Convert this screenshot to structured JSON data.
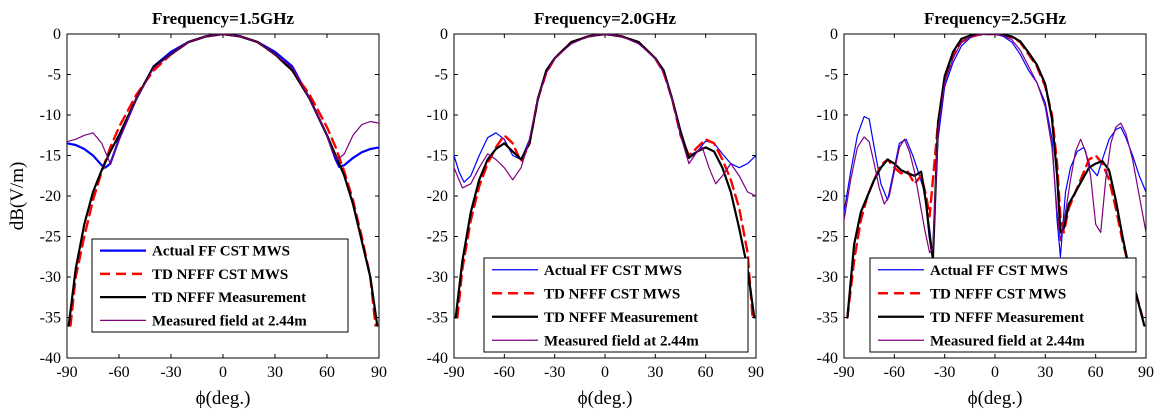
{
  "colors": {
    "actual": "#0000ff",
    "td_cst": "#ff0000",
    "td_meas": "#000000",
    "measured": "#800080"
  },
  "chart_data": [
    {
      "type": "line",
      "title": "Frequency=1.5GHz",
      "xlabel": "ϕ(deg.)",
      "ylabel": "dB(V/m)",
      "xlim": [
        -90,
        90
      ],
      "ylim": [
        -40,
        0
      ],
      "xticks": [
        "-90",
        "-60",
        "-30",
        "0",
        "30",
        "60",
        "90"
      ],
      "yticks": [
        "0",
        "-5",
        "-10",
        "-15",
        "-20",
        "-25",
        "-30",
        "-35",
        "-40"
      ],
      "legend": "bottom-center",
      "series": [
        {
          "name": "Actual FF CST MWS",
          "color": "#0000ff",
          "dash": "none",
          "width": 2.2,
          "x": [
            -90,
            -85,
            -80,
            -75,
            -70,
            -68,
            -65,
            -60,
            -50,
            -40,
            -30,
            -20,
            -10,
            0,
            10,
            20,
            30,
            40,
            50,
            60,
            65,
            67,
            70,
            75,
            80,
            85,
            90
          ],
          "y": [
            -13.5,
            -13.7,
            -14.2,
            -15,
            -16.2,
            -16.5,
            -16,
            -13,
            -8,
            -4,
            -2.2,
            -1,
            -0.3,
            0,
            -0.3,
            -1,
            -2.2,
            -4,
            -8,
            -12.5,
            -15.5,
            -16.4,
            -16.2,
            -15.3,
            -14.6,
            -14.2,
            -14
          ]
        },
        {
          "name": "TD NFFF CST MWS",
          "color": "#ff0000",
          "dash": "10,6",
          "width": 2.4,
          "x": [
            -88,
            -85,
            -80,
            -75,
            -70,
            -65,
            -60,
            -50,
            -40,
            -30,
            -20,
            -10,
            0,
            10,
            20,
            30,
            40,
            50,
            60,
            65,
            70,
            75,
            80,
            85,
            88
          ],
          "y": [
            -36,
            -30,
            -25,
            -20.5,
            -17,
            -14,
            -11.5,
            -7.5,
            -4.5,
            -2.5,
            -1,
            -0.3,
            0,
            -0.3,
            -1,
            -2.5,
            -4.5,
            -7.5,
            -11.5,
            -14,
            -17,
            -20.5,
            -25,
            -30,
            -36
          ]
        },
        {
          "name": "TD NFFF Measurement",
          "color": "#000000",
          "dash": "none",
          "width": 2.2,
          "x": [
            -89,
            -85,
            -80,
            -75,
            -70,
            -65,
            -60,
            -50,
            -40,
            -30,
            -20,
            -10,
            0,
            10,
            20,
            30,
            40,
            50,
            60,
            65,
            70,
            75,
            80,
            85,
            89
          ],
          "y": [
            -36,
            -29,
            -23.5,
            -19.5,
            -16.8,
            -14.5,
            -12.5,
            -8,
            -4,
            -2.5,
            -1,
            -0.3,
            0,
            -0.3,
            -1,
            -2.5,
            -4.5,
            -8,
            -12.5,
            -15,
            -17.5,
            -21,
            -25.5,
            -30,
            -36
          ]
        },
        {
          "name": "Measured field at 2.44m",
          "color": "#800080",
          "dash": "none",
          "width": 1.2,
          "x": [
            -90,
            -85,
            -80,
            -75,
            -70,
            -65,
            -60,
            -50,
            -40,
            -30,
            -20,
            -10,
            0,
            10,
            20,
            30,
            40,
            50,
            60,
            63,
            66,
            70,
            75,
            80,
            85,
            90
          ],
          "y": [
            -13.3,
            -13,
            -12.5,
            -12.2,
            -13.5,
            -16,
            -13,
            -8,
            -4.2,
            -2.5,
            -1,
            -0.3,
            0,
            -0.3,
            -1,
            -2.5,
            -4.2,
            -8,
            -12.5,
            -14.5,
            -15.5,
            -14.8,
            -12.5,
            -11.2,
            -10.8,
            -11
          ]
        }
      ]
    },
    {
      "type": "line",
      "title": "Frequency=2.0GHz",
      "xlabel": "ϕ(deg.)",
      "ylabel": "",
      "xlim": [
        -90,
        90
      ],
      "ylim": [
        -40,
        0
      ],
      "xticks": [
        "-90",
        "-60",
        "-30",
        "0",
        "30",
        "60",
        "90"
      ],
      "yticks": [
        "0",
        "-5",
        "-10",
        "-15",
        "-20",
        "-25",
        "-30",
        "-35",
        "-40"
      ],
      "legend": "bottom-center",
      "series": [
        {
          "name": "Actual FF CST MWS",
          "color": "#0000ff",
          "dash": "none",
          "width": 1.2,
          "x": [
            -90,
            -87,
            -84,
            -80,
            -75,
            -70,
            -65,
            -60,
            -55,
            -50,
            -45,
            -40,
            -35,
            -30,
            -20,
            -10,
            0,
            10,
            20,
            30,
            35,
            40,
            45,
            50,
            55,
            60,
            65,
            70,
            75,
            80,
            85,
            90
          ],
          "y": [
            -15,
            -17,
            -18.3,
            -17.5,
            -15,
            -12.8,
            -12.2,
            -13,
            -15,
            -15.5,
            -13,
            -8,
            -4.8,
            -3,
            -1.2,
            -0.3,
            0,
            -0.3,
            -1.2,
            -3,
            -4.8,
            -8,
            -12.5,
            -15,
            -14.5,
            -13.2,
            -13.5,
            -14.8,
            -16,
            -16.5,
            -16,
            -15
          ]
        },
        {
          "name": "TD NFFF CST MWS",
          "color": "#ff0000",
          "dash": "10,6",
          "width": 2.4,
          "x": [
            -88,
            -85,
            -80,
            -75,
            -70,
            -65,
            -60,
            -55,
            -50,
            -45,
            -40,
            -35,
            -30,
            -20,
            -10,
            0,
            10,
            20,
            30,
            35,
            40,
            45,
            50,
            55,
            60,
            65,
            70,
            75,
            80,
            85,
            88
          ],
          "y": [
            -35,
            -29,
            -23,
            -18.8,
            -16,
            -14,
            -12.5,
            -13.5,
            -15.8,
            -13.5,
            -8,
            -4.8,
            -3,
            -1,
            -0.3,
            0,
            -0.3,
            -1,
            -3,
            -4.8,
            -8,
            -12.5,
            -15,
            -14,
            -13,
            -13.5,
            -15.5,
            -18,
            -21.5,
            -27,
            -35
          ]
        },
        {
          "name": "TD NFFF Measurement",
          "color": "#000000",
          "dash": "none",
          "width": 2.2,
          "x": [
            -89,
            -85,
            -80,
            -75,
            -70,
            -65,
            -60,
            -55,
            -50,
            -45,
            -40,
            -35,
            -30,
            -20,
            -10,
            0,
            10,
            20,
            30,
            35,
            40,
            45,
            50,
            55,
            60,
            65,
            70,
            75,
            80,
            85,
            89
          ],
          "y": [
            -35,
            -28,
            -22,
            -18,
            -15.5,
            -14.2,
            -13.5,
            -14.5,
            -15.5,
            -13.5,
            -8,
            -4.5,
            -3,
            -1,
            -0.3,
            0,
            -0.3,
            -1,
            -3,
            -4.5,
            -8,
            -12,
            -15.3,
            -14.5,
            -14,
            -14.5,
            -16.5,
            -19.5,
            -24,
            -29,
            -35
          ]
        },
        {
          "name": "Measured field at 2.44m",
          "color": "#800080",
          "dash": "none",
          "width": 1.2,
          "x": [
            -90,
            -85,
            -80,
            -75,
            -70,
            -65,
            -60,
            -55,
            -50,
            -45,
            -40,
            -35,
            -30,
            -20,
            -10,
            0,
            10,
            20,
            30,
            35,
            40,
            45,
            50,
            55,
            58,
            62,
            66,
            70,
            75,
            80,
            85,
            90
          ],
          "y": [
            -16.5,
            -19,
            -18.5,
            -16.5,
            -14.8,
            -15.5,
            -16.5,
            -18,
            -16.5,
            -13,
            -8,
            -4.8,
            -3,
            -1.2,
            -0.3,
            0,
            -0.3,
            -1.2,
            -3,
            -4.8,
            -8,
            -12.5,
            -16,
            -14.5,
            -14,
            -16.5,
            -18.5,
            -17.5,
            -16,
            -17.5,
            -19.5,
            -20
          ]
        }
      ]
    },
    {
      "type": "line",
      "title": "Frequency=2.5GHz",
      "xlabel": "ϕ(deg.)",
      "ylabel": "",
      "xlim": [
        -90,
        90
      ],
      "ylim": [
        -40,
        0
      ],
      "xticks": [
        "-90",
        "-60",
        "-30",
        "0",
        "30",
        "60",
        "90"
      ],
      "yticks": [
        "0",
        "-5",
        "-10",
        "-15",
        "-20",
        "-25",
        "-30",
        "-35",
        "-40"
      ],
      "legend": "bottom-center",
      "series": [
        {
          "name": "Actual FF CST MWS",
          "color": "#0000ff",
          "dash": "none",
          "width": 1.2,
          "x": [
            -90,
            -86,
            -82,
            -78,
            -75,
            -72,
            -68,
            -64,
            -61,
            -57,
            -53,
            -49,
            -45,
            -42,
            -39,
            -37,
            -34,
            -30,
            -25,
            -20,
            -15,
            -10,
            -5,
            0,
            5,
            10,
            15,
            20,
            25,
            30,
            34,
            37,
            39,
            42,
            45,
            49,
            53,
            57,
            61,
            64,
            68,
            72,
            75,
            78,
            82,
            86,
            90
          ],
          "y": [
            -22,
            -17,
            -12.5,
            -10.2,
            -10.5,
            -14,
            -18.5,
            -20.5,
            -17.5,
            -13.5,
            -13,
            -15,
            -17.5,
            -19.5,
            -24,
            -27.5,
            -13,
            -6.5,
            -3.5,
            -1.5,
            -0.5,
            -0.1,
            0,
            0,
            -0.3,
            -1,
            -2.5,
            -4.5,
            -6,
            -8.5,
            -13,
            -23,
            -27.5,
            -19.5,
            -16.5,
            -14.5,
            -14,
            -16.5,
            -17.5,
            -15.5,
            -13,
            -11.8,
            -11.5,
            -12.8,
            -15,
            -17.5,
            -19.5
          ]
        },
        {
          "name": "TD NFFF CST MWS",
          "color": "#ff0000",
          "dash": "10,6",
          "width": 2.4,
          "x": [
            -88,
            -84,
            -80,
            -76,
            -72,
            -68,
            -64,
            -60,
            -56,
            -52,
            -48,
            -44,
            -41,
            -39,
            -37,
            -34,
            -30,
            -25,
            -20,
            -15,
            -10,
            -5,
            0,
            5,
            10,
            15,
            20,
            25,
            30,
            34,
            37,
            39,
            41,
            44,
            48,
            52,
            56,
            60,
            64,
            68,
            72,
            76,
            80,
            84,
            88
          ],
          "y": [
            -35,
            -28,
            -23,
            -20,
            -18,
            -16.2,
            -15.5,
            -16.5,
            -17.2,
            -17,
            -18.5,
            -17.5,
            -20,
            -22.5,
            -18,
            -11,
            -5.5,
            -2.5,
            -1,
            -0.4,
            -0.1,
            0,
            0,
            -0.1,
            -0.4,
            -1,
            -2.5,
            -4,
            -6.5,
            -10,
            -16,
            -22.5,
            -24.5,
            -21.5,
            -19.5,
            -17.5,
            -15.5,
            -15,
            -16,
            -18,
            -21.5,
            -25.5,
            -29,
            -32,
            -35
          ]
        },
        {
          "name": "TD NFFF Measurement",
          "color": "#000000",
          "dash": "none",
          "width": 2.2,
          "x": [
            -88,
            -84,
            -80,
            -76,
            -72,
            -68,
            -64,
            -60,
            -56,
            -52,
            -48,
            -44,
            -41,
            -39,
            -37,
            -34,
            -30,
            -25,
            -20,
            -15,
            -10,
            -5,
            0,
            5,
            10,
            15,
            20,
            25,
            30,
            34,
            37,
            39,
            41,
            44,
            48,
            52,
            56,
            60,
            64,
            68,
            72,
            76,
            80,
            84,
            89
          ],
          "y": [
            -35,
            -26,
            -22,
            -20,
            -18,
            -16.5,
            -15.5,
            -16,
            -16.8,
            -17.2,
            -17.5,
            -17,
            -21,
            -25,
            -27.8,
            -11,
            -5.2,
            -2.2,
            -0.6,
            -0.2,
            0,
            0,
            0,
            -0.1,
            -0.3,
            -0.9,
            -2.3,
            -3.8,
            -6.2,
            -10.5,
            -17.5,
            -24.5,
            -24,
            -21,
            -19.5,
            -18,
            -16.5,
            -16,
            -15.7,
            -16.8,
            -20.5,
            -25,
            -29,
            -32,
            -36
          ]
        },
        {
          "name": "Measured field at 2.44m",
          "color": "#800080",
          "dash": "none",
          "width": 1.2,
          "x": [
            -90,
            -86,
            -82,
            -78,
            -75,
            -72,
            -69,
            -66,
            -63,
            -60,
            -57,
            -54,
            -51,
            -48,
            -45,
            -42,
            -39,
            -37,
            -34,
            -30,
            -25,
            -20,
            -15,
            -10,
            -5,
            0,
            5,
            10,
            15,
            20,
            25,
            30,
            34,
            37,
            39,
            42,
            45,
            48,
            51,
            54,
            57,
            60,
            63,
            66,
            69,
            72,
            75,
            78,
            82,
            86,
            90
          ],
          "y": [
            -23,
            -18,
            -14,
            -12.7,
            -13.3,
            -16,
            -19,
            -21,
            -20,
            -17,
            -14,
            -13,
            -14.5,
            -17,
            -20.5,
            -24,
            -27,
            -26.5,
            -12,
            -6,
            -3,
            -1,
            -0.4,
            -0.1,
            0,
            0,
            -0.2,
            -0.7,
            -2,
            -4,
            -6,
            -9,
            -14,
            -22,
            -25.5,
            -22,
            -18,
            -14.5,
            -13,
            -14.5,
            -17.5,
            -23.5,
            -24.5,
            -18,
            -13.5,
            -11.5,
            -11,
            -12.3,
            -15.5,
            -20,
            -24.5
          ]
        }
      ]
    }
  ]
}
